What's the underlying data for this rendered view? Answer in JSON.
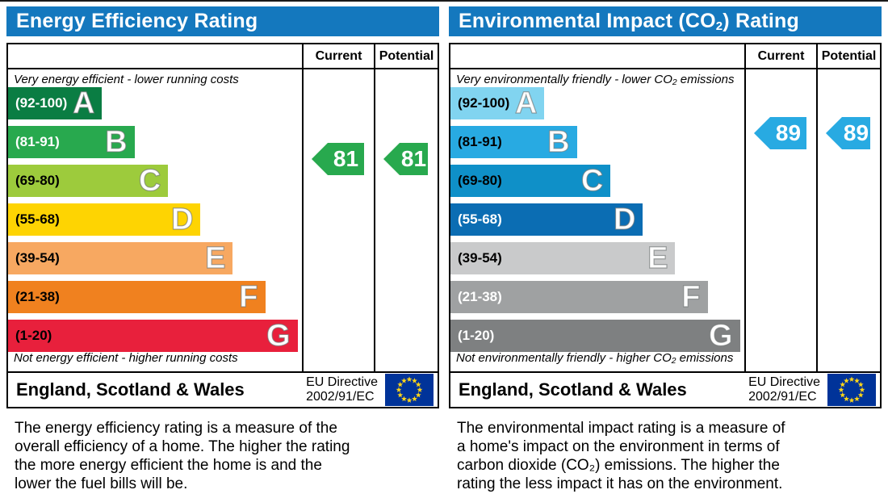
{
  "chart_data": [
    {
      "type": "bar",
      "title": "Energy Efficiency Rating",
      "categories": [
        "A (92-100)",
        "B (81-91)",
        "C (69-80)",
        "D (55-68)",
        "E (39-54)",
        "F (21-38)",
        "G (1-20)"
      ],
      "values": [
        32,
        43,
        54.5,
        65.5,
        76.5,
        87.5,
        98.5
      ],
      "values_note": "bar length as % of scale column width",
      "band_colors": [
        "#0a7d43",
        "#28a94e",
        "#9dcb3c",
        "#fed402",
        "#f7a861",
        "#f0811f",
        "#e8203c"
      ],
      "current": 81,
      "potential": 81,
      "current_band": "B",
      "potential_band": "B",
      "top_annotation": "Very energy efficient - lower running costs",
      "bottom_annotation": "Not energy efficient - higher running costs",
      "footer": "England, Scotland & Wales — EU Directive 2002/91/EC"
    },
    {
      "type": "bar",
      "title": "Environmental Impact (CO₂) Rating",
      "categories": [
        "A (92-100)",
        "B (81-91)",
        "C (69-80)",
        "D (55-68)",
        "E (39-54)",
        "F (21-38)",
        "G (1-20)"
      ],
      "values": [
        32,
        43,
        54.5,
        65.5,
        76.5,
        87.5,
        98.5
      ],
      "values_note": "bar length as % of scale column width",
      "band_colors": [
        "#81d4f0",
        "#28aae2",
        "#0f90c8",
        "#0b6db3",
        "#c9cacb",
        "#9fa1a2",
        "#7e8081"
      ],
      "current": 89,
      "potential": 89,
      "current_band": "B",
      "potential_band": "B",
      "top_annotation": "Very environmentally friendly - lower CO₂ emissions",
      "bottom_annotation": "Not environmentally friendly - higher CO₂ emissions",
      "footer": "England, Scotland & Wales — EU Directive 2002/91/EC"
    }
  ],
  "colors": {
    "header_blue": "#1478be",
    "energy_arrow": "#28a94e",
    "co2_arrow": "#28aae2",
    "eu_flag_blue": "#003399",
    "eu_star_yellow": "#ffd617"
  },
  "panels": [
    {
      "title_pre": "Energy Efficiency Rating",
      "title_sub": "",
      "title_post": "",
      "columns": {
        "current": "Current",
        "potential": "Potential"
      },
      "top_label": "Very energy efficient - lower running costs",
      "bottom_label": "Not energy efficient - higher running costs",
      "bands": [
        {
          "range": "(92-100)",
          "letter": "A",
          "width_pct": 32,
          "color": "#0a7d43",
          "range_text_color": "#ffffff"
        },
        {
          "range": "(81-91)",
          "letter": "B",
          "width_pct": 43,
          "color": "#28a94e",
          "range_text_color": "#ffffff"
        },
        {
          "range": "(69-80)",
          "letter": "C",
          "width_pct": 54.5,
          "color": "#9dcb3c",
          "range_text_color": "#000000"
        },
        {
          "range": "(55-68)",
          "letter": "D",
          "width_pct": 65.5,
          "color": "#fed402",
          "range_text_color": "#000000"
        },
        {
          "range": "(39-54)",
          "letter": "E",
          "width_pct": 76.5,
          "color": "#f7a861",
          "range_text_color": "#000000"
        },
        {
          "range": "(21-38)",
          "letter": "F",
          "width_pct": 87.5,
          "color": "#f0811f",
          "range_text_color": "#000000"
        },
        {
          "range": "(1-20)",
          "letter": "G",
          "width_pct": 98.5,
          "color": "#e8203c",
          "range_text_color": "#000000"
        }
      ],
      "current": {
        "value": "81",
        "color": "#28a94e"
      },
      "potential": {
        "value": "81",
        "color": "#28a94e"
      },
      "footer": {
        "region": "England, Scotland & Wales",
        "directive_line1": "EU Directive",
        "directive_line2": "2002/91/EC"
      },
      "description": "The energy efficiency rating is a measure of the\noverall efficiency of a home. The higher the rating\nthe more energy efficient the home is and the\nlower the fuel bills will be."
    },
    {
      "title_pre": "Environmental Impact (CO",
      "title_sub": "2",
      "title_post": ") Rating",
      "columns": {
        "current": "Current",
        "potential": "Potential"
      },
      "top_label": "Very environmentally friendly - lower CO₂ emissions",
      "bottom_label": "Not environmentally friendly - higher CO₂ emissions",
      "bands": [
        {
          "range": "(92-100)",
          "letter": "A",
          "width_pct": 32,
          "color": "#81d4f0",
          "range_text_color": "#000000"
        },
        {
          "range": "(81-91)",
          "letter": "B",
          "width_pct": 43,
          "color": "#28aae2",
          "range_text_color": "#000000"
        },
        {
          "range": "(69-80)",
          "letter": "C",
          "width_pct": 54.5,
          "color": "#0f90c8",
          "range_text_color": "#000000"
        },
        {
          "range": "(55-68)",
          "letter": "D",
          "width_pct": 65.5,
          "color": "#0b6db3",
          "range_text_color": "#ffffff"
        },
        {
          "range": "(39-54)",
          "letter": "E",
          "width_pct": 76.5,
          "color": "#c9cacb",
          "range_text_color": "#000000"
        },
        {
          "range": "(21-38)",
          "letter": "F",
          "width_pct": 87.5,
          "color": "#9fa1a2",
          "range_text_color": "#ffffff"
        },
        {
          "range": "(1-20)",
          "letter": "G",
          "width_pct": 98.5,
          "color": "#7e8081",
          "range_text_color": "#ffffff"
        }
      ],
      "current": {
        "value": "89",
        "color": "#28aae2"
      },
      "potential": {
        "value": "89",
        "color": "#28aae2"
      },
      "footer": {
        "region": "England, Scotland & Wales",
        "directive_line1": "EU Directive",
        "directive_line2": "2002/91/EC"
      },
      "description": "The environmental impact rating is a measure of\na home's impact on the environment in terms of\ncarbon dioxide (CO₂) emissions. The higher the\nrating the less impact it has on the environment."
    }
  ]
}
